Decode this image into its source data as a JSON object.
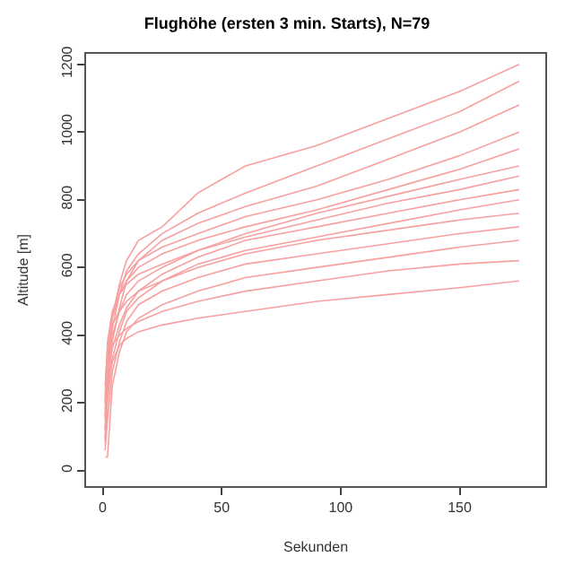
{
  "chart_data": {
    "type": "line",
    "title": "Flughöhe (ersten 3 min. Starts), N=79",
    "xlabel": "Sekunden",
    "ylabel": "Altitude [m]",
    "x": [
      1,
      2,
      4,
      7,
      10,
      15,
      25,
      40,
      60,
      90,
      120,
      150,
      175
    ],
    "xlim": [
      -7,
      186
    ],
    "xticks": [
      0,
      50,
      100,
      150
    ],
    "ylim": [
      -46,
      1231
    ],
    "yticks": [
      0,
      200,
      400,
      600,
      800,
      1000,
      1200
    ],
    "marker": "none",
    "line_style": "solid",
    "series": [
      {
        "color": "#f7a0a0",
        "values": [
          120,
          300,
          450,
          550,
          620,
          680,
          720,
          820,
          900,
          960,
          1040,
          1120,
          1200
        ]
      },
      {
        "color": "#f7a0a0",
        "values": [
          100,
          250,
          420,
          520,
          590,
          640,
          700,
          760,
          820,
          900,
          980,
          1060,
          1150
        ]
      },
      {
        "color": "#f7a0a0",
        "values": [
          80,
          220,
          380,
          480,
          560,
          620,
          680,
          730,
          780,
          840,
          920,
          1000,
          1080
        ]
      },
      {
        "color": "#f7a0a0",
        "values": [
          150,
          320,
          460,
          540,
          580,
          620,
          660,
          700,
          750,
          800,
          860,
          930,
          1000
        ]
      },
      {
        "color": "#f7a0a0",
        "values": [
          200,
          350,
          450,
          520,
          560,
          600,
          640,
          680,
          720,
          770,
          830,
          890,
          950
        ]
      },
      {
        "color": "#f7a0a0",
        "values": [
          180,
          300,
          400,
          470,
          520,
          560,
          600,
          650,
          700,
          760,
          810,
          860,
          900
        ]
      },
      {
        "color": "#f7a0a0",
        "values": [
          220,
          380,
          470,
          520,
          550,
          580,
          610,
          650,
          690,
          740,
          790,
          830,
          870
        ]
      },
      {
        "color": "#f7a0a0",
        "values": [
          160,
          280,
          360,
          430,
          480,
          530,
          580,
          630,
          680,
          720,
          760,
          800,
          830
        ]
      },
      {
        "color": "#f7a0a0",
        "values": [
          90,
          200,
          330,
          410,
          470,
          510,
          560,
          610,
          650,
          690,
          730,
          770,
          800
        ]
      },
      {
        "color": "#f7a0a0",
        "values": [
          250,
          360,
          430,
          470,
          500,
          530,
          560,
          600,
          640,
          680,
          710,
          740,
          760
        ]
      },
      {
        "color": "#f7a0a0",
        "values": [
          60,
          150,
          290,
          380,
          440,
          490,
          530,
          570,
          610,
          640,
          670,
          700,
          720
        ]
      },
      {
        "color": "#f7a0a0",
        "values": [
          40,
          40,
          250,
          350,
          410,
          450,
          490,
          530,
          570,
          600,
          630,
          660,
          680
        ]
      },
      {
        "color": "#f7a0a0",
        "values": [
          200,
          300,
          370,
          400,
          420,
          440,
          470,
          500,
          530,
          560,
          590,
          610,
          620
        ]
      },
      {
        "color": "#f7a0a0",
        "values": [
          120,
          240,
          320,
          370,
          390,
          410,
          430,
          450,
          470,
          500,
          520,
          540,
          560
        ]
      }
    ]
  }
}
